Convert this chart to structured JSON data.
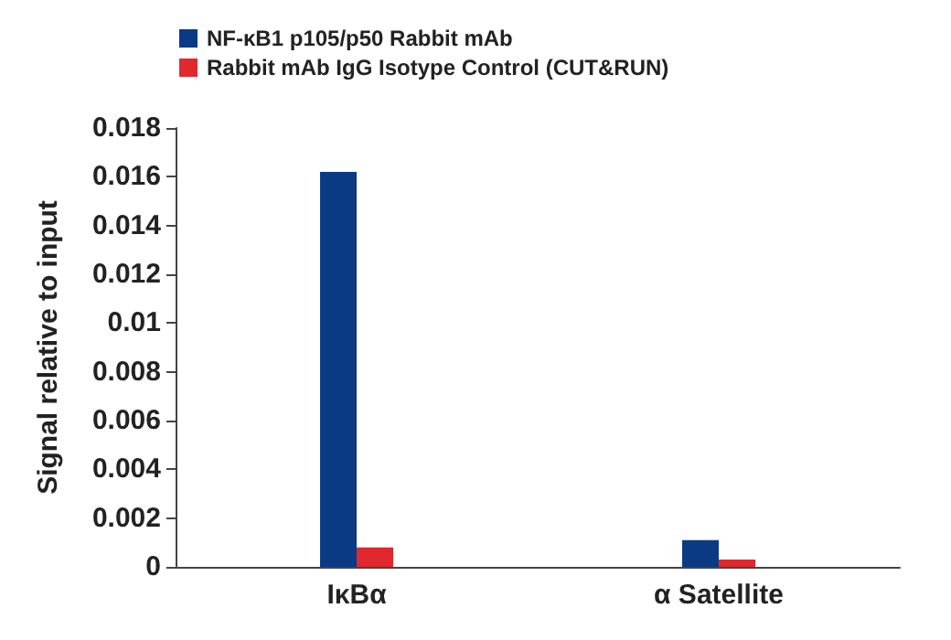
{
  "chart_data": {
    "type": "bar",
    "ylabel": "Signal relative to input",
    "categories": [
      "IκBα",
      "α Satellite"
    ],
    "series": [
      {
        "name": "NF-κB1 p105/p50 Rabbit mAb",
        "color": "#0b3a85",
        "values": [
          0.0162,
          0.0011
        ]
      },
      {
        "name": "Rabbit mAb IgG Isotype Control (CUT&RUN)",
        "color": "#e0282e",
        "values": [
          0.0008,
          0.0003
        ]
      }
    ],
    "ylim": [
      0,
      0.018
    ],
    "yticks": [
      0,
      0.002,
      0.004,
      0.006,
      0.008,
      0.01,
      0.012,
      0.014,
      0.016,
      0.018
    ],
    "grid": false,
    "legend": "top left"
  }
}
